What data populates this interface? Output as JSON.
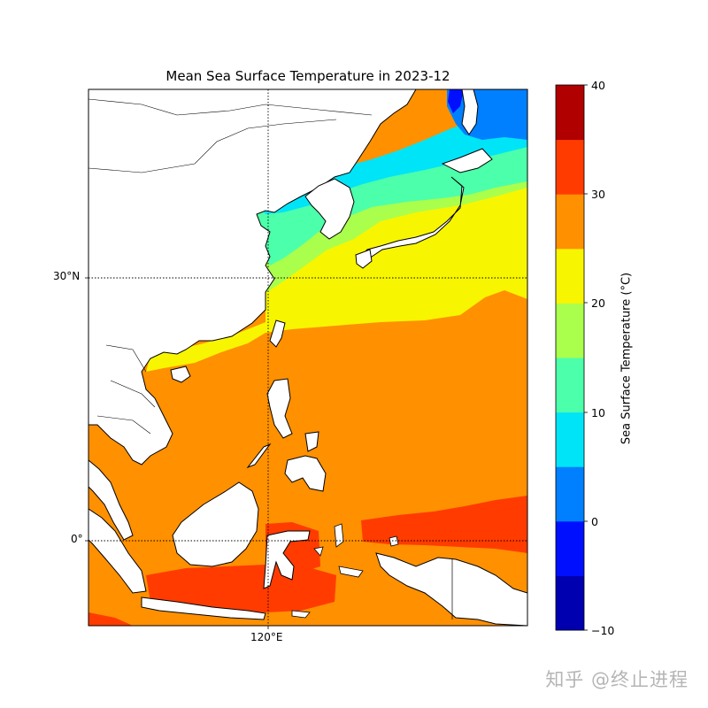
{
  "title": "Mean Sea Surface Temperature in 2023-12",
  "axes": {
    "lat_label": "30°N",
    "equator_label": "0°",
    "lon_label": "120°E"
  },
  "colorbar": {
    "label": "Sea Surface Temperature (°C)",
    "ticks": [
      "40",
      "30",
      "20",
      "10",
      "0",
      "−10"
    ],
    "levels": [
      -10,
      -5,
      0,
      5,
      10,
      15,
      20,
      25,
      30,
      35,
      40
    ],
    "colors": [
      "#0000b0",
      "#0010ff",
      "#0080ff",
      "#00e4f8",
      "#4cffaa",
      "#aaff4c",
      "#f8f500",
      "#ff9000",
      "#ff3b00",
      "#b00000"
    ]
  },
  "colors": {
    "land": "#ffffff",
    "coast": "#000000",
    "gridline": "#000000"
  },
  "watermark": "知乎 @终止进程"
}
